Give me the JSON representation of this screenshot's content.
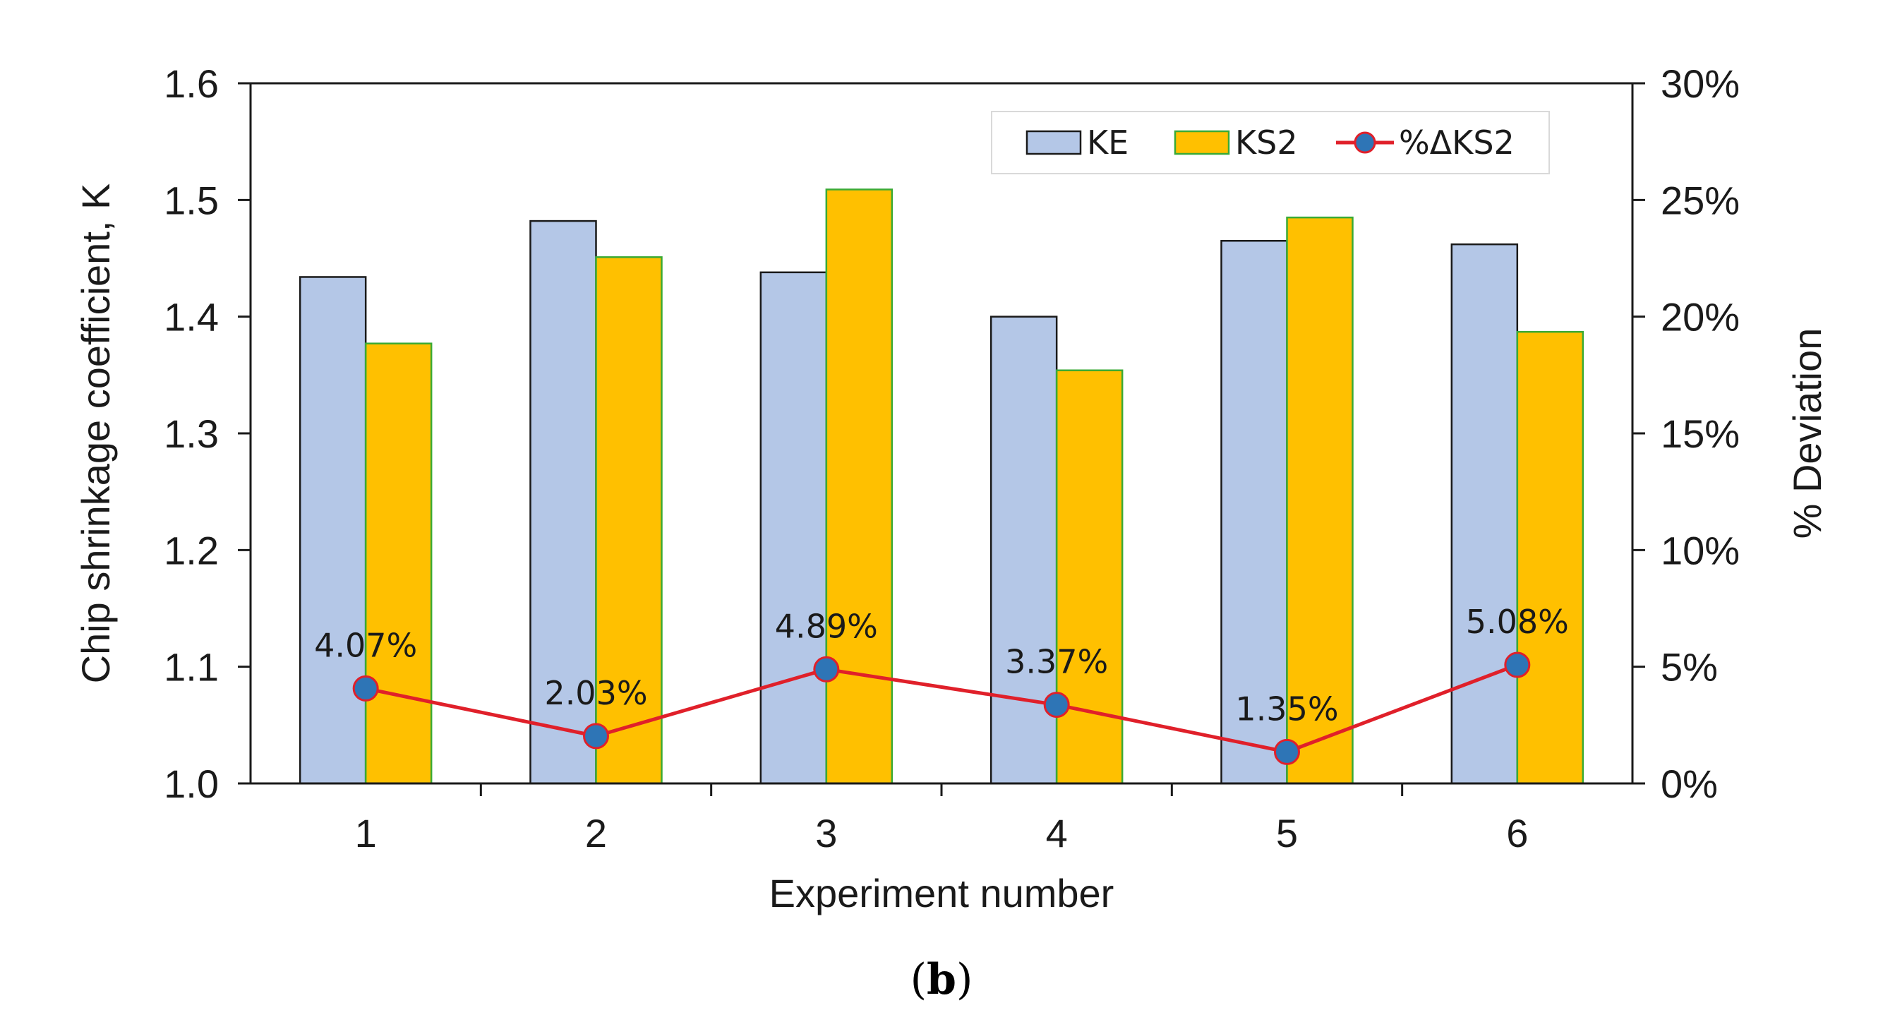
{
  "chart_data": {
    "type": "bar",
    "xlabel": "Experiment number",
    "ylabel": "Chip shrinkage coefficient, K",
    "y2label": "% Deviation",
    "categories": [
      "1",
      "2",
      "3",
      "4",
      "5",
      "6"
    ],
    "ylim": [
      1.0,
      1.6
    ],
    "yticks": [
      "1.0",
      "1.1",
      "1.2",
      "1.3",
      "1.4",
      "1.5",
      "1.6"
    ],
    "y2lim": [
      0,
      30
    ],
    "y2ticks": [
      "0%",
      "5%",
      "10%",
      "15%",
      "20%",
      "25%",
      "30%"
    ],
    "series": [
      {
        "name": "KE",
        "kind": "bar",
        "axis": "left",
        "color": "#b4c7e7",
        "edge": "#1a1a1a",
        "values": [
          1.434,
          1.482,
          1.438,
          1.4,
          1.465,
          1.462
        ]
      },
      {
        "name": "KS2",
        "kind": "bar",
        "axis": "left",
        "color": "#ffc000",
        "edge": "#3aaa35",
        "values": [
          1.377,
          1.451,
          1.509,
          1.354,
          1.485,
          1.387
        ]
      },
      {
        "name": "%ΔKS2",
        "kind": "line",
        "axis": "right",
        "color": "#e0202a",
        "marker": "#2e75b6",
        "values": [
          4.07,
          2.03,
          4.89,
          3.37,
          1.35,
          5.08
        ],
        "labels": [
          "4.07%",
          "2.03%",
          "4.89%",
          "3.37%",
          "1.35%",
          "5.08%"
        ]
      }
    ],
    "legend": {
      "position": "top-right",
      "entries": [
        "KE",
        "KS2",
        "%ΔKS2"
      ]
    },
    "grid": false
  },
  "caption": {
    "open": "(",
    "letter": "b",
    "close": ")"
  }
}
